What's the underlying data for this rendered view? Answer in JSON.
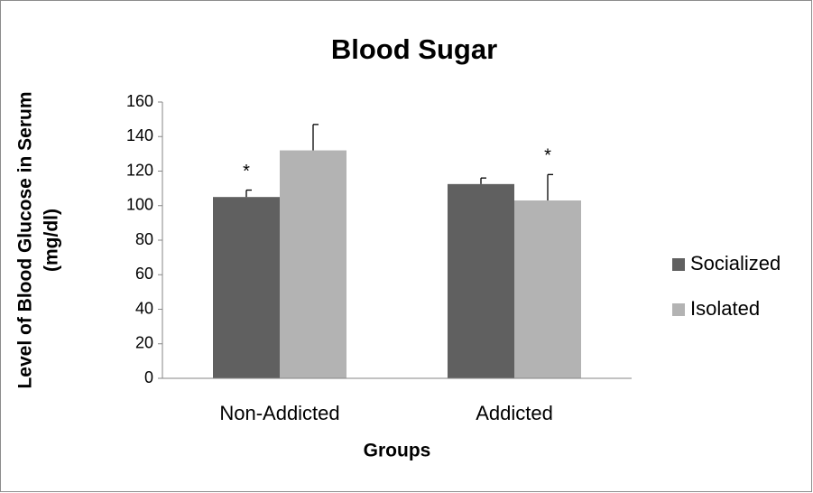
{
  "chart_data": {
    "type": "bar",
    "title": "Blood Sugar",
    "x_label": "Groups",
    "y_label": [
      "Level of Blood Glucose in Serum",
      "(mg/dl)"
    ],
    "categories": [
      "Non-Addicted",
      "Addicted"
    ],
    "series": [
      {
        "name": "Socialized",
        "color": "#606060",
        "values": [
          105,
          112.5
        ],
        "errors": [
          4,
          3.5
        ]
      },
      {
        "name": "Isolated",
        "color": "#b3b3b3",
        "values": [
          132,
          103
        ],
        "errors": [
          15,
          15
        ]
      }
    ],
    "annotations": [
      {
        "text": "*",
        "series": "Socialized",
        "category": "Non-Addicted"
      },
      {
        "text": "*",
        "series": "Isolated",
        "category": "Addicted"
      }
    ],
    "ylim": [
      0,
      160
    ],
    "yticks": [
      0,
      20,
      40,
      60,
      80,
      100,
      120,
      140,
      160
    ],
    "grid": false,
    "legend": "right"
  }
}
